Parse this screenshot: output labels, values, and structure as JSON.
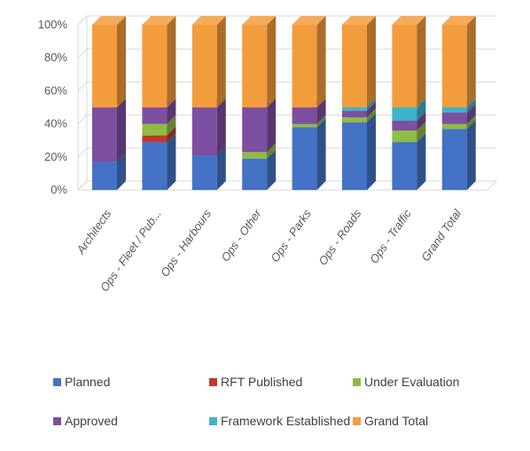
{
  "chart_data": {
    "type": "bar",
    "stacked": true,
    "percent_stacked": true,
    "three_d": true,
    "title": "",
    "xlabel": "",
    "ylabel": "",
    "ylim": [
      0,
      100
    ],
    "yticks": [
      "0%",
      "20%",
      "40%",
      "60%",
      "80%",
      "100%"
    ],
    "grid": true,
    "legend_position": "bottom",
    "categories": [
      "Architects",
      "Ops - Fleet / Pub...",
      "Ops - Harbours",
      "Ops - Other",
      "Ops - Parks",
      "Ops - Roads",
      "Ops - Traffic",
      "Grand Total"
    ],
    "series": [
      {
        "name": "Planned",
        "color": "#4472c4",
        "values": [
          17,
          29,
          21,
          19,
          38,
          41,
          29,
          37
        ]
      },
      {
        "name": "RFT Published",
        "color": "#c0392b",
        "values": [
          0,
          4,
          0,
          0,
          0,
          0,
          0,
          0
        ]
      },
      {
        "name": "Under Evaluation",
        "color": "#8fbc45",
        "values": [
          0,
          7,
          0,
          4,
          2,
          3,
          7,
          3
        ]
      },
      {
        "name": "Approved",
        "color": "#7d4fa0",
        "values": [
          33,
          10,
          29,
          27,
          10,
          4,
          6,
          7
        ]
      },
      {
        "name": "Framework Established",
        "color": "#3eb3cf",
        "values": [
          0,
          0,
          0,
          0,
          0,
          2,
          8,
          3
        ]
      },
      {
        "name": "Grand Total",
        "color": "#f39c3c",
        "values": [
          50,
          50,
          50,
          50,
          50,
          50,
          50,
          50
        ]
      }
    ]
  }
}
